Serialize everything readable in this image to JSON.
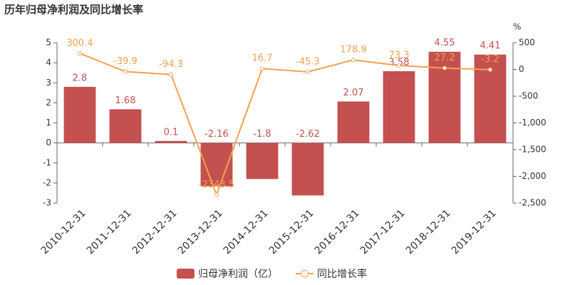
{
  "chart_data": {
    "type": "combo",
    "title": "历年归母净利润及同比增长率",
    "y2_label": "%",
    "categories": [
      "2010-12-31",
      "2011-12-31",
      "2012-12-31",
      "2013-12-31",
      "2014-12-31",
      "2015-12-31",
      "2016-12-31",
      "2017-12-31",
      "2018-12-31",
      "2019-12-31"
    ],
    "series": [
      {
        "name": "归母净利润（亿）",
        "type": "bar",
        "color": "#c4504f",
        "values": [
          2.8,
          1.68,
          0.1,
          -2.16,
          -1.8,
          -2.62,
          2.07,
          3.58,
          4.55,
          4.41
        ]
      },
      {
        "name": "同比增长率",
        "type": "line",
        "axis": "y2",
        "color": "#f4a050",
        "values": [
          300.4,
          -39.9,
          -94.3,
          -2343.5,
          16.7,
          -45.3,
          178.9,
          73.3,
          27.2,
          -3.2
        ]
      }
    ],
    "ylim": [
      -3,
      5
    ],
    "yticks": [
      -3,
      -2,
      -1,
      0,
      1,
      2,
      3,
      4,
      5
    ],
    "y2lim": [
      -2500,
      500
    ],
    "y2ticks": [
      {
        "value": -2500,
        "label": "-2,500"
      },
      {
        "value": -2000,
        "label": "-2,000"
      },
      {
        "value": -1500,
        "label": "-1,500"
      },
      {
        "value": -1000,
        "label": "-1,000"
      },
      -500,
      0,
      500
    ]
  }
}
